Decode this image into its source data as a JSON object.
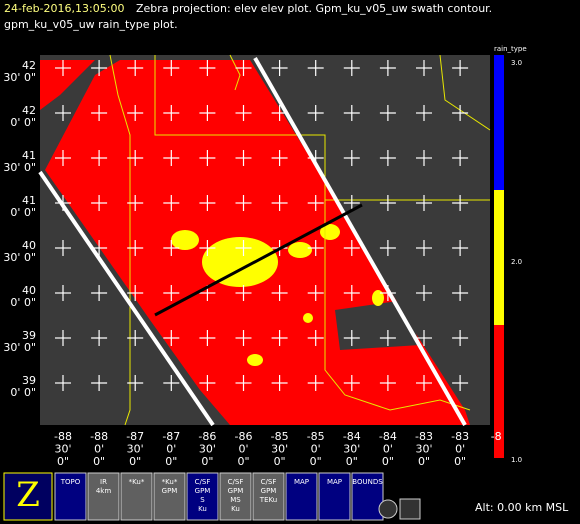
{
  "header": {
    "time": "24-feb-2016,13:05:00",
    "line1": "Zebra projection: elev elev  plot.  Gpm_ku_v05_uw swath contour.",
    "line2": "gpm_ku_v05_uw rain_type  plot."
  },
  "lat_labels": [
    [
      "42",
      "30' 0\""
    ],
    [
      "42",
      "0' 0\""
    ],
    [
      "41",
      "30' 0\""
    ],
    [
      "41",
      "0' 0\""
    ],
    [
      "40",
      "30' 0\""
    ],
    [
      "40",
      "0' 0\""
    ],
    [
      "39",
      "30' 0\""
    ],
    [
      "39",
      "0' 0\""
    ]
  ],
  "lon_labels": [
    [
      "-88",
      "30'",
      "0\""
    ],
    [
      "-88",
      "0'",
      "0\""
    ],
    [
      "-87",
      "30'",
      "0\""
    ],
    [
      "-87",
      "0'",
      "0\""
    ],
    [
      "-86",
      "30'",
      "0\""
    ],
    [
      "-86",
      "0'",
      "0\""
    ],
    [
      "-85",
      "30'",
      "0\""
    ],
    [
      "-85",
      "0'",
      "0\""
    ],
    [
      "-84",
      "30'",
      "0\""
    ],
    [
      "-84",
      "0'",
      "0\""
    ],
    [
      "-83",
      "30'",
      "0\""
    ],
    [
      "-83",
      "0'",
      "0\""
    ],
    [
      "-8"
    ]
  ],
  "colorbar": {
    "title": "rain_type",
    "ticks": [
      "3.0",
      "2.0",
      "1.0"
    ]
  },
  "toolbar": {
    "logo": "Z",
    "icons": [
      "TOPO",
      "IR 4km",
      "*Ku*",
      "*Ku* GPM",
      "C/SF GPM S Ku",
      "C/SF GPM MS Ku",
      "C/SF GPM TEKu",
      "MAP",
      "MAP",
      "BOUNDS"
    ]
  },
  "altitude": "Alt: 0.00 km MSL"
}
